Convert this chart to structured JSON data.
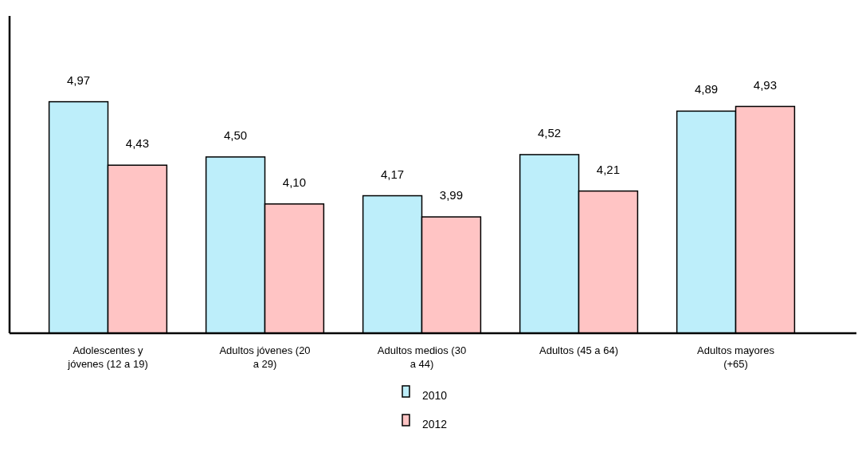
{
  "chart_data": {
    "type": "bar",
    "categories": [
      "Adolescentes y jóvenes (12 a 19)",
      "Adultos jóvenes (20 a 29)",
      "Adultos medios (30 a 44)",
      "Adultos (45 a 64)",
      "Adultos mayores (+65)"
    ],
    "series": [
      {
        "name": "2010",
        "color": "#bdeefa",
        "values": [
          4.97,
          4.5,
          4.17,
          4.52,
          4.89
        ],
        "value_labels": [
          "4,97",
          "4,50",
          "4,17",
          "4,52",
          "4,89"
        ]
      },
      {
        "name": "2012",
        "color": "#ffc4c4",
        "values": [
          4.43,
          4.1,
          3.99,
          4.21,
          4.93
        ],
        "value_labels": [
          "4,43",
          "4,10",
          "3,99",
          "4,21",
          "4,93"
        ]
      }
    ],
    "ylim": [
      3,
      5.7
    ],
    "tick_labels": "x",
    "legend": "bottom"
  }
}
